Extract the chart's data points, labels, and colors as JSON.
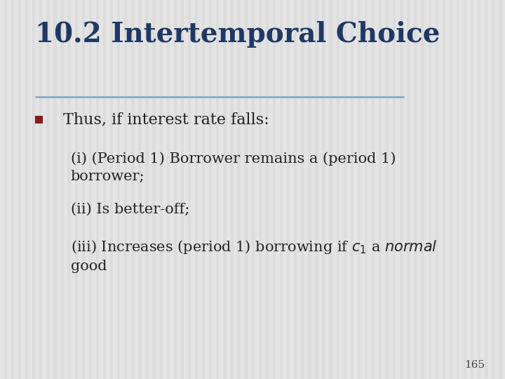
{
  "title": "10.2 Intertemporal Choice",
  "title_color": "#1F3864",
  "title_fontsize": 28,
  "background_color": "#DCDCDC",
  "stripe_light": "#D0D0D0",
  "stripe_dark": "#C8C8C8",
  "divider_color": "#8EA9C1",
  "bullet_color": "#8B1A1A",
  "bullet_text": "Thus, if interest rate falls:",
  "bullet_fontsize": 16,
  "sub_fontsize": 15,
  "text_color": "#222222",
  "page_number": "165",
  "page_number_fontsize": 11,
  "page_number_color": "#444444",
  "sub_item_1": "(i) (Period 1) Borrower remains a (period 1)\nborrower;",
  "sub_item_2": "(ii) Is better-off;",
  "sub_item_3_pre": "(iii) Increases (period 1) borrowing if ",
  "sub_item_3_post": " a ",
  "sub_item_3_end": "\ngood"
}
